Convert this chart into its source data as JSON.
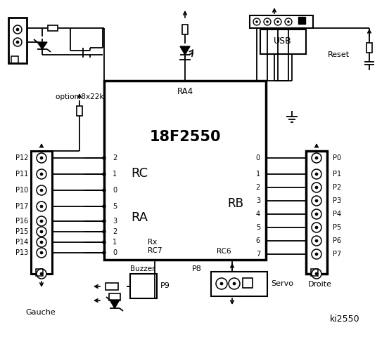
{
  "title": "ki2550",
  "bg_color": "#ffffff",
  "text_color": "#000000",
  "ic_label": "18F2550",
  "ic_sublabel": "RA4",
  "rc_label": "RC",
  "ra_label": "RA",
  "rb_label": "RB",
  "left_labels": [
    "P12",
    "P11",
    "P10",
    "P17",
    "P16",
    "P15",
    "P14",
    "P13"
  ],
  "right_labels": [
    "P0",
    "P1",
    "P2",
    "P3",
    "P4",
    "P5",
    "P6",
    "P7"
  ],
  "gauche_label": "Gauche",
  "droite_label": "Droite",
  "reset_label": "Reset",
  "usb_label": "USB",
  "option_label": "option 8x22k",
  "rx_label": "Rx",
  "rc7_label": "RC7",
  "rc6_label": "RC6",
  "p9_label": "P9",
  "p8_label": "P8",
  "buzzer_label": "Buzzer",
  "servo_label": "Servo"
}
